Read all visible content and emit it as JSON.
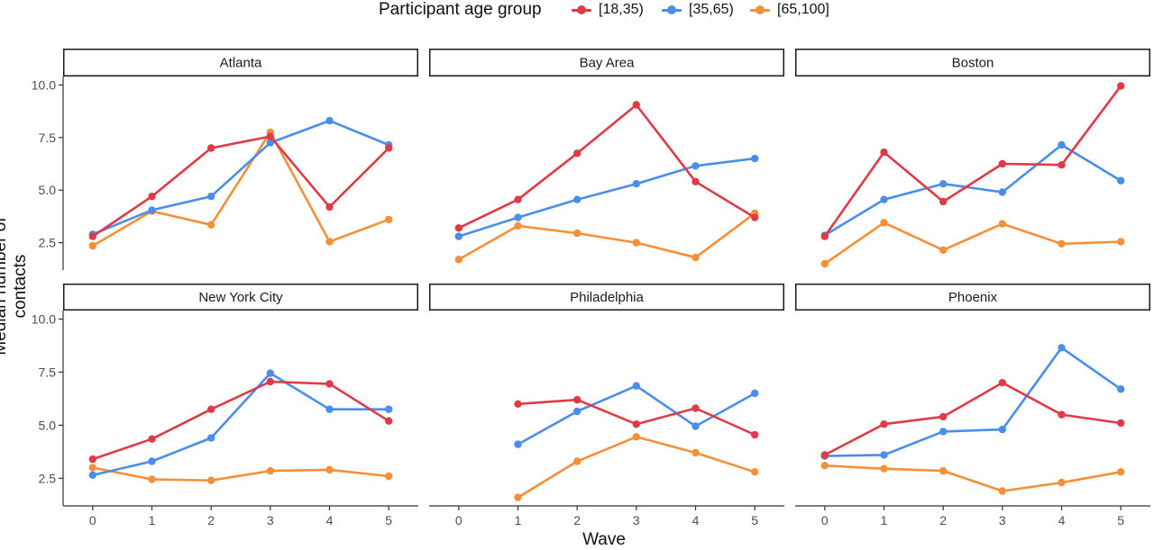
{
  "colors": {
    "[18,35)": "#df3a45",
    "[35,65)": "#4a8eeb",
    "[65,100]": "#f58f38"
  },
  "legend": {
    "title": "Participant age group",
    "entries": [
      "[18,35)",
      "[35,65)",
      "[65,100]"
    ]
  },
  "chart_data": {
    "type": "line",
    "xlabel": "Wave",
    "ylabel": "Median number of contacts",
    "x": [
      0,
      1,
      2,
      3,
      4,
      5
    ],
    "x_tick_labels": [
      "0",
      "1",
      "2",
      "3",
      "4",
      "5"
    ],
    "y_ticks": [
      2.5,
      5.0,
      7.5,
      10.0
    ],
    "y_tick_labels": [
      "2.5",
      "5.0",
      "7.5",
      "10.0"
    ],
    "ylim": [
      1.2,
      10.4
    ],
    "xlim": [
      -0.5,
      5.5
    ],
    "grid": false,
    "legend_position": "top",
    "panels": [
      {
        "title": "Atlanta",
        "series": [
          {
            "name": "[18,35)",
            "x": [
              0,
              1,
              2,
              3,
              4,
              5
            ],
            "values": [
              2.8,
              4.7,
              7.0,
              7.55,
              4.2,
              7.0
            ]
          },
          {
            "name": "[35,65)",
            "x": [
              0,
              1,
              2,
              3,
              4,
              5
            ],
            "values": [
              2.9,
              4.05,
              4.7,
              7.25,
              8.3,
              7.15
            ]
          },
          {
            "name": "[65,100]",
            "x": [
              0,
              1,
              2,
              3,
              4,
              5
            ],
            "values": [
              2.35,
              4.0,
              3.35,
              7.75,
              2.55,
              3.6
            ]
          }
        ]
      },
      {
        "title": "Bay Area",
        "series": [
          {
            "name": "[18,35)",
            "x": [
              0,
              1,
              2,
              3,
              4,
              5
            ],
            "values": [
              3.2,
              4.55,
              6.75,
              9.05,
              5.4,
              3.7
            ]
          },
          {
            "name": "[35,65)",
            "x": [
              0,
              1,
              2,
              3,
              4,
              5
            ],
            "values": [
              2.8,
              3.7,
              4.55,
              5.3,
              6.15,
              6.5
            ]
          },
          {
            "name": "[65,100]",
            "x": [
              0,
              1,
              2,
              3,
              4,
              5
            ],
            "values": [
              1.7,
              3.3,
              2.95,
              2.5,
              1.8,
              3.9
            ]
          }
        ]
      },
      {
        "title": "Boston",
        "series": [
          {
            "name": "[18,35)",
            "x": [
              0,
              1,
              2,
              3,
              4,
              5
            ],
            "values": [
              2.8,
              6.8,
              4.45,
              6.25,
              6.2,
              9.95
            ]
          },
          {
            "name": "[35,65)",
            "x": [
              0,
              1,
              2,
              3,
              4,
              5
            ],
            "values": [
              2.85,
              4.55,
              5.3,
              4.9,
              7.15,
              5.45
            ]
          },
          {
            "name": "[65,100]",
            "x": [
              0,
              1,
              2,
              3,
              4,
              5
            ],
            "values": [
              1.5,
              3.45,
              2.15,
              3.4,
              2.45,
              2.55
            ]
          }
        ]
      },
      {
        "title": "New York City",
        "series": [
          {
            "name": "[18,35)",
            "x": [
              0,
              1,
              2,
              3,
              4,
              5
            ],
            "values": [
              3.4,
              4.35,
              5.75,
              7.05,
              6.95,
              5.2
            ]
          },
          {
            "name": "[35,65)",
            "x": [
              0,
              1,
              2,
              3,
              4,
              5
            ],
            "values": [
              2.65,
              3.3,
              4.4,
              7.45,
              5.75,
              5.75
            ]
          },
          {
            "name": "[65,100]",
            "x": [
              0,
              1,
              2,
              3,
              4,
              5
            ],
            "values": [
              3.0,
              2.45,
              2.4,
              2.85,
              2.9,
              2.6
            ]
          }
        ]
      },
      {
        "title": "Philadelphia",
        "series": [
          {
            "name": "[18,35)",
            "x": [
              1,
              2,
              3,
              4,
              5
            ],
            "values": [
              6.0,
              6.2,
              5.05,
              5.8,
              4.55
            ]
          },
          {
            "name": "[35,65)",
            "x": [
              1,
              2,
              3,
              4,
              5
            ],
            "values": [
              4.1,
              5.65,
              6.85,
              4.95,
              6.5
            ]
          },
          {
            "name": "[65,100]",
            "x": [
              1,
              2,
              3,
              4,
              5
            ],
            "values": [
              1.6,
              3.3,
              4.45,
              3.7,
              2.8
            ]
          }
        ]
      },
      {
        "title": "Phoenix",
        "series": [
          {
            "name": "[18,35)",
            "x": [
              0,
              1,
              2,
              3,
              4,
              5
            ],
            "values": [
              3.6,
              5.05,
              5.4,
              7.0,
              5.5,
              5.1
            ]
          },
          {
            "name": "[35,65)",
            "x": [
              0,
              1,
              2,
              3,
              4,
              5
            ],
            "values": [
              3.55,
              3.6,
              4.7,
              4.8,
              8.65,
              6.7
            ]
          },
          {
            "name": "[65,100]",
            "x": [
              0,
              1,
              2,
              3,
              4,
              5
            ],
            "values": [
              3.1,
              2.95,
              2.85,
              1.9,
              2.3,
              2.8
            ]
          }
        ]
      }
    ]
  }
}
